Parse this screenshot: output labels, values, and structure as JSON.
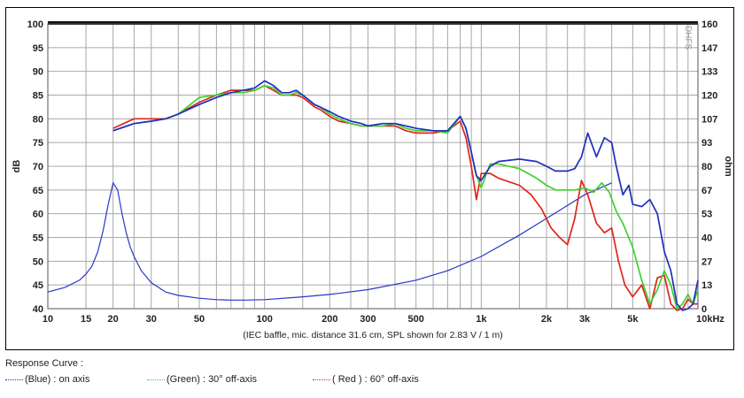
{
  "chart_data": {
    "type": "line",
    "caption": "(IEC baffle, mic. distance 31.6 cm, SPL shown for 2.83 V / 1 m)",
    "xscale": "log",
    "xlim": [
      10,
      10000
    ],
    "ylim_left": [
      40,
      100
    ],
    "ylim_right": [
      0,
      160
    ],
    "ylabel_left": "dB",
    "ylabel_right": "ohm",
    "watermark": "DHFS",
    "x_ticks": [
      {
        "v": 10,
        "label": "10"
      },
      {
        "v": 15,
        "label": "15"
      },
      {
        "v": 20,
        "label": "20"
      },
      {
        "v": 30,
        "label": "30"
      },
      {
        "v": 50,
        "label": "50"
      },
      {
        "v": 100,
        "label": "100"
      },
      {
        "v": 200,
        "label": "200"
      },
      {
        "v": 300,
        "label": "300"
      },
      {
        "v": 500,
        "label": "500"
      },
      {
        "v": 1000,
        "label": "1k"
      },
      {
        "v": 2000,
        "label": "2k"
      },
      {
        "v": 3000,
        "label": "3k"
      },
      {
        "v": 5000,
        "label": "5k"
      },
      {
        "v": 10000,
        "label": "10kHz"
      }
    ],
    "x_grid": [
      10,
      15,
      20,
      25,
      30,
      40,
      50,
      60,
      70,
      80,
      90,
      100,
      150,
      200,
      250,
      300,
      400,
      500,
      600,
      700,
      800,
      900,
      1000,
      1500,
      2000,
      2500,
      3000,
      4000,
      5000,
      6000,
      7000,
      8000,
      9000,
      10000
    ],
    "y_ticks_left": [
      "100",
      "95",
      "90",
      "85",
      "80",
      "75",
      "70",
      "65",
      "60",
      "55",
      "50",
      "45",
      "40"
    ],
    "y_ticks_right": [
      "160",
      "147",
      "133",
      "120",
      "107",
      "93",
      "80",
      "67",
      "53",
      "40",
      "27",
      "13",
      "0"
    ],
    "grid": true,
    "colors": {
      "blue": "#1f2fbf",
      "green": "#3fd12c",
      "red": "#e0241c",
      "impedance": "#2a35c8",
      "grid": "#a8a8a8"
    },
    "series": [
      {
        "name": "(Blue)  : on axis",
        "color": "#1f2fbf",
        "x": [
          20,
          25,
          30,
          35,
          40,
          50,
          60,
          70,
          80,
          90,
          100,
          110,
          120,
          130,
          140,
          150,
          160,
          170,
          180,
          200,
          220,
          250,
          280,
          300,
          350,
          400,
          450,
          500,
          600,
          700,
          800,
          850,
          900,
          950,
          1000,
          1100,
          1200,
          1500,
          1800,
          2000,
          2200,
          2500,
          2700,
          2900,
          3100,
          3400,
          3700,
          4000,
          4200,
          4500,
          4800,
          5000,
          5500,
          6000,
          6500,
          7000,
          7500,
          8000,
          8500,
          9000,
          9500,
          10000
        ],
        "y": [
          77.5,
          79,
          79.5,
          80,
          81,
          83,
          84.5,
          85.5,
          86,
          86.5,
          88,
          87,
          85.5,
          85.5,
          86,
          85,
          84,
          83,
          82.5,
          81.5,
          80.5,
          79.5,
          79,
          78.5,
          79,
          79,
          78.5,
          78,
          77.5,
          77.5,
          80.5,
          78,
          73,
          68,
          67,
          70,
          71,
          71.5,
          71,
          70,
          69,
          69,
          69.5,
          72,
          77,
          72,
          76,
          75,
          70,
          64,
          66,
          62,
          61.5,
          63,
          60,
          52,
          48,
          41,
          39,
          40,
          41,
          46
        ]
      },
      {
        "name": "(Green) : 30° off-axis",
        "color": "#3fd12c",
        "x": [
          20,
          25,
          30,
          35,
          40,
          50,
          60,
          70,
          80,
          90,
          100,
          110,
          120,
          130,
          140,
          150,
          160,
          170,
          180,
          200,
          220,
          250,
          280,
          300,
          350,
          400,
          450,
          500,
          600,
          700,
          800,
          850,
          900,
          950,
          1000,
          1100,
          1200,
          1500,
          1800,
          2000,
          2200,
          2500,
          2700,
          3000,
          3300,
          3600,
          3900,
          4200,
          4500,
          5000,
          5500,
          6000,
          6500,
          7000,
          7500,
          8000,
          8500,
          9000,
          9500,
          10000
        ],
        "y": [
          77.5,
          79,
          79.5,
          80,
          81,
          84.5,
          85,
          85.5,
          85.5,
          86,
          87,
          86.5,
          85,
          85,
          85.5,
          85,
          84,
          83,
          82.5,
          81,
          80,
          79,
          78.5,
          78.5,
          78.5,
          79,
          78,
          77.5,
          77.5,
          77,
          80.5,
          78,
          73,
          68,
          65.5,
          70.5,
          70.5,
          69.5,
          67.5,
          66,
          65,
          65,
          65,
          65.5,
          64.5,
          66.5,
          64.5,
          60.5,
          58,
          53,
          46,
          41,
          44,
          48,
          45,
          40,
          41,
          43,
          41,
          44
        ]
      },
      {
        "name": "( Red ) : 60° off-axis",
        "color": "#e0241c",
        "x": [
          20,
          25,
          30,
          35,
          40,
          50,
          60,
          70,
          80,
          90,
          100,
          110,
          120,
          130,
          140,
          150,
          160,
          170,
          180,
          200,
          220,
          250,
          280,
          300,
          350,
          400,
          450,
          500,
          600,
          700,
          800,
          850,
          900,
          950,
          1000,
          1100,
          1200,
          1500,
          1700,
          1900,
          2100,
          2300,
          2500,
          2700,
          2900,
          3100,
          3400,
          3700,
          4000,
          4300,
          4600,
          5000,
          5500,
          6000,
          6500,
          7000,
          7500,
          8000,
          8500,
          9000,
          9500,
          10000
        ],
        "y": [
          78,
          80,
          80,
          80,
          81,
          83.5,
          85,
          86,
          86,
          86,
          87,
          86,
          85,
          85,
          85,
          84.5,
          83.5,
          82.5,
          82,
          80.5,
          79.5,
          79,
          78.5,
          78.5,
          78.5,
          78.5,
          77.5,
          77,
          77,
          77.5,
          79.5,
          76,
          70,
          63,
          68.5,
          68.5,
          67.5,
          66,
          64,
          61,
          57,
          55,
          53.5,
          59,
          67,
          64,
          58,
          56,
          57,
          50,
          45,
          42.5,
          45,
          40,
          46.5,
          47,
          41,
          38,
          40,
          42,
          41,
          41
        ]
      }
    ],
    "impedance": {
      "name": "impedance",
      "color": "#2a35c8",
      "x": [
        10,
        12,
        14,
        15,
        16,
        17,
        18,
        19,
        20,
        21,
        22,
        23,
        24,
        25,
        27,
        30,
        35,
        40,
        50,
        60,
        70,
        80,
        100,
        150,
        200,
        300,
        500,
        700,
        1000,
        1500,
        2000,
        3000,
        4000
      ],
      "y": [
        43.5,
        44.5,
        46,
        47.3,
        49,
        52,
        56.5,
        62,
        66.5,
        65,
        60,
        56,
        53,
        51,
        48,
        45.5,
        43.5,
        42.8,
        42.2,
        41.9,
        41.8,
        41.8,
        41.9,
        42.5,
        43,
        44,
        46,
        48,
        51,
        55.5,
        59,
        64,
        66.5
      ]
    }
  },
  "legend": {
    "title": "Response Curve :",
    "items": [
      {
        "label": "(Blue)  : on axis",
        "color": "#1f2fbf"
      },
      {
        "label": "(Green) : 30° off-axis",
        "color": "#3fd12c"
      },
      {
        "label": "( Red ) : 60° off-axis",
        "color": "#e0241c"
      }
    ]
  }
}
